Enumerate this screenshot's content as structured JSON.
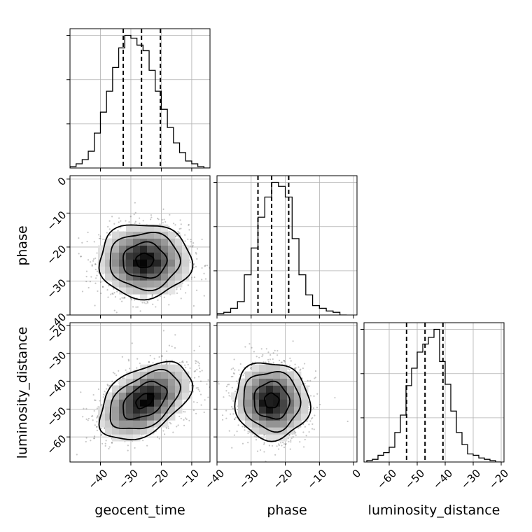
{
  "chart_data": {
    "type": "corner",
    "parameters": [
      "geocent_time",
      "phase",
      "luminosity_distance"
    ],
    "grid": true,
    "quantile_lines": "dashed",
    "panels": [
      {
        "id": "hist-geocent_time",
        "kind": "histogram",
        "parameter": "geocent_time",
        "xlim": [
          -50,
          -4
        ],
        "xticks": [
          -40,
          -30,
          -20,
          -10
        ],
        "bin_edges": [
          -50,
          -48,
          -46,
          -44,
          -42,
          -40,
          -38,
          -36,
          -34,
          -32,
          -30,
          -28,
          -26,
          -24,
          -22,
          -20,
          -18,
          -16,
          -14,
          -12,
          -10,
          -8,
          -6,
          -4
        ],
        "counts": [
          0.01,
          0.03,
          0.06,
          0.12,
          0.25,
          0.4,
          0.55,
          0.72,
          0.86,
          0.95,
          0.93,
          0.88,
          0.84,
          0.7,
          0.55,
          0.42,
          0.29,
          0.18,
          0.11,
          0.05,
          0.03,
          0.01,
          0.0
        ],
        "quantiles": [
          -32.5,
          -26.5,
          -20.3
        ]
      },
      {
        "id": "scatter-geocent_time-phase",
        "kind": "2d-density",
        "x": "geocent_time",
        "y": "phase",
        "xlim": [
          -50,
          -4
        ],
        "ylim": [
          -40,
          1
        ],
        "center": [
          -25.5,
          -24
        ],
        "sigma": [
          7.2,
          5.2
        ],
        "rho": 0.0,
        "contour_levels": [
          0.4,
          1.0,
          1.6,
          2.1
        ]
      },
      {
        "id": "hist-phase",
        "kind": "histogram",
        "parameter": "phase",
        "xlim": [
          -40,
          1
        ],
        "xticks": [
          -40,
          -30,
          -20,
          -10,
          0
        ],
        "bin_edges": [
          -40,
          -38,
          -36,
          -34,
          -32,
          -30,
          -28,
          -26,
          -24,
          -22,
          -20,
          -18,
          -16,
          -14,
          -12,
          -10,
          -8,
          -6,
          -4,
          -2
        ],
        "counts": [
          0.01,
          0.02,
          0.05,
          0.1,
          0.3,
          0.5,
          0.73,
          0.88,
          0.99,
          0.96,
          0.88,
          0.57,
          0.3,
          0.15,
          0.07,
          0.05,
          0.03,
          0.02,
          0.0
        ],
        "quantiles": [
          -28.0,
          -24.0,
          -19.0
        ]
      },
      {
        "id": "scatter-geocent_time-luminosity_distance",
        "kind": "2d-density",
        "x": "geocent_time",
        "y": "luminosity_distance",
        "xlim": [
          -50,
          -4
        ],
        "ylim": [
          -69,
          -19
        ],
        "center": [
          -25.5,
          -47
        ],
        "sigma": [
          7.2,
          6.6
        ],
        "rho": 0.45,
        "contour_levels": [
          0.4,
          1.0,
          1.6,
          2.1
        ]
      },
      {
        "id": "scatter-phase-luminosity_distance",
        "kind": "2d-density",
        "x": "phase",
        "y": "luminosity_distance",
        "xlim": [
          -40,
          1
        ],
        "ylim": [
          -69,
          -19
        ],
        "center": [
          -24,
          -47
        ],
        "sigma": [
          5.2,
          6.6
        ],
        "rho": -0.05,
        "contour_levels": [
          0.4,
          1.0,
          1.6,
          2.1
        ]
      },
      {
        "id": "hist-luminosity_distance",
        "kind": "histogram",
        "parameter": "luminosity_distance",
        "xlim": [
          -69,
          -19
        ],
        "xticks": [
          -60,
          -50,
          -40,
          -30,
          -20
        ],
        "bin_edges": [
          -68,
          -66,
          -64,
          -62,
          -60,
          -58,
          -56,
          -54,
          -52,
          -50,
          -48,
          -46,
          -44,
          -42,
          -40,
          -38,
          -36,
          -34,
          -32,
          -30,
          -28,
          -26,
          -24,
          -22,
          -20
        ],
        "counts": [
          0.01,
          0.02,
          0.05,
          0.07,
          0.11,
          0.22,
          0.35,
          0.57,
          0.7,
          0.82,
          0.88,
          0.93,
          0.99,
          0.75,
          0.58,
          0.38,
          0.22,
          0.13,
          0.06,
          0.05,
          0.03,
          0.02,
          0.01,
          0.0
        ],
        "quantiles": [
          -53.8,
          -47.2,
          -40.8
        ]
      }
    ],
    "axis_ticks": {
      "geocent_time": [
        -40,
        -30,
        -20,
        -10
      ],
      "phase": [
        -40,
        -30,
        -20,
        -10,
        0
      ],
      "luminosity_distance": [
        -60,
        -50,
        -40,
        -30,
        -20
      ]
    },
    "xlabels": [
      "geocent_time",
      "phase",
      "luminosity_distance"
    ],
    "ylabels": [
      "phase",
      "luminosity_distance"
    ]
  },
  "labels": {
    "x_geocent": "geocent_time",
    "x_phase": "phase",
    "x_lumdist": "luminosity_distance",
    "y_phase": "phase",
    "y_lumdist": "luminosity_distance"
  }
}
